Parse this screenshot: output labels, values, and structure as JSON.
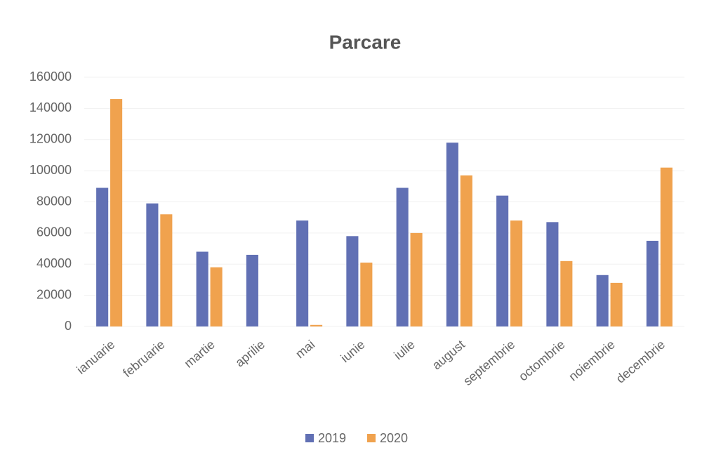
{
  "chart_data": {
    "type": "bar",
    "title": "Parcare",
    "categories": [
      "ianuarie",
      "februarie",
      "martie",
      "aprilie",
      "mai",
      "iunie",
      "iulie",
      "august",
      "septembrie",
      "octombrie",
      "noiembrie",
      "decembrie"
    ],
    "series": [
      {
        "name": "2019",
        "color": "#6170b4",
        "values": [
          89000,
          79000,
          48000,
          46000,
          68000,
          58000,
          89000,
          118000,
          84000,
          67000,
          33000,
          55000
        ]
      },
      {
        "name": "2020",
        "color": "#f0a24e",
        "values": [
          146000,
          72000,
          38000,
          0,
          1000,
          41000,
          60000,
          97000,
          68000,
          42000,
          28000,
          102000
        ]
      }
    ],
    "ylim": [
      0,
      160000
    ],
    "yticks": [
      0,
      20000,
      40000,
      60000,
      80000,
      100000,
      120000,
      140000,
      160000
    ],
    "grid": true,
    "legend": "bottom"
  }
}
